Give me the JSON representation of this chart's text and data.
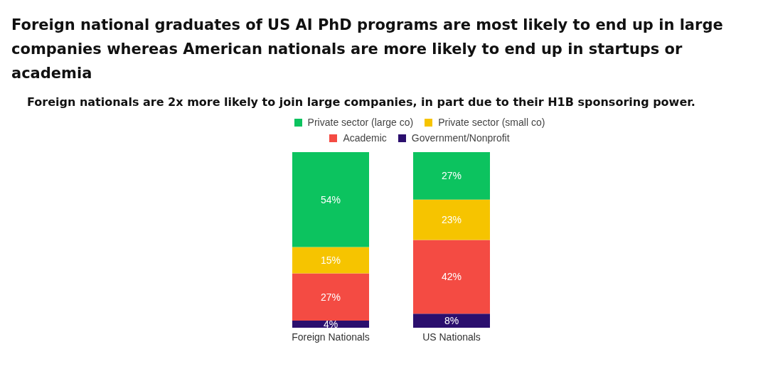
{
  "chart_data": {
    "type": "bar",
    "title": "Foreign national graduates of US AI PhD programs are most likely to end up in large companies whereas American nationals are more likely to end up in startups or academia",
    "subtitle": "Foreign nationals are 2x more likely to join large companies, in part due to their H1B sponsoring power.",
    "categories": [
      "Foreign Nationals",
      "US Nationals"
    ],
    "stacked": true,
    "legend": "top",
    "grid": false,
    "series": [
      {
        "name": "Government/Nonprofit",
        "color": "#2b0f6e",
        "values": [
          4,
          8
        ],
        "value_labels": [
          "4%",
          "8%"
        ]
      },
      {
        "name": "Academic",
        "color": "#f44b43",
        "values": [
          27,
          42
        ],
        "value_labels": [
          "27%",
          "42%"
        ]
      },
      {
        "name": "Private sector (small co)",
        "color": "#f6c400",
        "values": [
          15,
          23
        ],
        "value_labels": [
          "15%",
          "23%"
        ]
      },
      {
        "name": "Private sector (large co)",
        "color": "#0cc35f",
        "values": [
          54,
          27
        ],
        "value_labels": [
          "54%",
          "27%"
        ]
      }
    ]
  }
}
